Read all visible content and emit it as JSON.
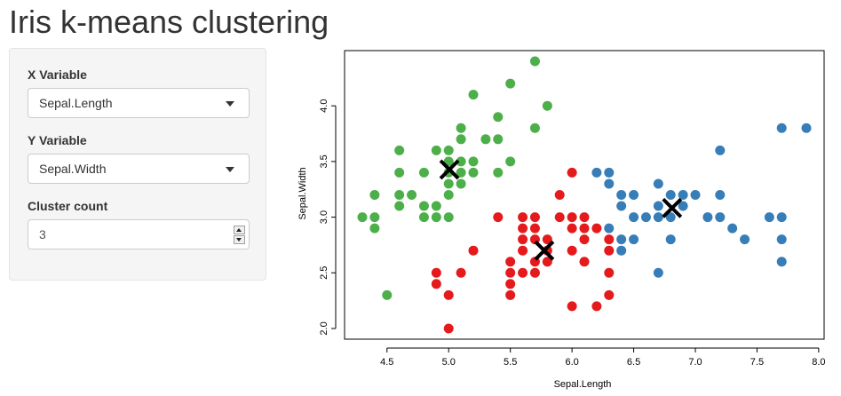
{
  "app": {
    "title": "Iris k-means clustering"
  },
  "sidebar": {
    "x_variable": {
      "label": "X Variable",
      "selected": "Sepal.Length"
    },
    "y_variable": {
      "label": "Y Variable",
      "selected": "Sepal.Width"
    },
    "cluster_count": {
      "label": "Cluster count",
      "value": "3"
    }
  },
  "chart_data": {
    "type": "scatter",
    "xlabel": "Sepal.Length",
    "ylabel": "Sepal.Width",
    "xlim": [
      4.3,
      7.9
    ],
    "ylim": [
      2.0,
      4.4
    ],
    "xticks": [
      "4.5",
      "5.0",
      "5.5",
      "6.0",
      "6.5",
      "7.0",
      "7.5",
      "8.0"
    ],
    "yticks": [
      "2.0",
      "2.5",
      "3.0",
      "3.5",
      "4.0"
    ],
    "grid": false,
    "series": [
      {
        "color": "#4daf4a",
        "points": [
          [
            4.3,
            3.0
          ],
          [
            4.4,
            3.0
          ],
          [
            4.4,
            2.9
          ],
          [
            4.4,
            3.2
          ],
          [
            4.5,
            2.3
          ],
          [
            4.6,
            3.1
          ],
          [
            4.6,
            3.4
          ],
          [
            4.6,
            3.6
          ],
          [
            4.6,
            3.2
          ],
          [
            4.7,
            3.2
          ],
          [
            4.8,
            3.0
          ],
          [
            4.8,
            3.1
          ],
          [
            4.8,
            3.4
          ],
          [
            4.9,
            3.0
          ],
          [
            4.9,
            3.1
          ],
          [
            4.9,
            3.6
          ],
          [
            5.0,
            3.0
          ],
          [
            5.0,
            3.2
          ],
          [
            5.0,
            3.3
          ],
          [
            5.0,
            3.4
          ],
          [
            5.0,
            3.5
          ],
          [
            5.0,
            3.6
          ],
          [
            5.1,
            3.3
          ],
          [
            5.1,
            3.4
          ],
          [
            5.1,
            3.5
          ],
          [
            5.1,
            3.7
          ],
          [
            5.1,
            3.8
          ],
          [
            5.2,
            3.4
          ],
          [
            5.2,
            3.5
          ],
          [
            5.2,
            4.1
          ],
          [
            5.3,
            3.7
          ],
          [
            5.4,
            3.4
          ],
          [
            5.4,
            3.7
          ],
          [
            5.4,
            3.9
          ],
          [
            5.5,
            3.5
          ],
          [
            5.5,
            4.2
          ],
          [
            5.7,
            3.8
          ],
          [
            5.7,
            4.4
          ],
          [
            5.8,
            4.0
          ]
        ]
      },
      {
        "color": "#e41a1c",
        "points": [
          [
            4.9,
            2.4
          ],
          [
            4.9,
            2.5
          ],
          [
            5.0,
            2.0
          ],
          [
            5.0,
            2.3
          ],
          [
            5.1,
            2.5
          ],
          [
            5.2,
            2.7
          ],
          [
            5.4,
            3.0
          ],
          [
            5.5,
            2.3
          ],
          [
            5.5,
            2.4
          ],
          [
            5.5,
            2.5
          ],
          [
            5.5,
            2.6
          ],
          [
            5.6,
            2.5
          ],
          [
            5.6,
            2.7
          ],
          [
            5.6,
            2.8
          ],
          [
            5.6,
            2.9
          ],
          [
            5.6,
            3.0
          ],
          [
            5.7,
            2.5
          ],
          [
            5.7,
            2.6
          ],
          [
            5.7,
            2.8
          ],
          [
            5.7,
            2.9
          ],
          [
            5.7,
            3.0
          ],
          [
            5.8,
            2.6
          ],
          [
            5.8,
            2.7
          ],
          [
            5.8,
            2.8
          ],
          [
            5.9,
            3.0
          ],
          [
            5.9,
            3.2
          ],
          [
            6.0,
            2.2
          ],
          [
            6.0,
            2.7
          ],
          [
            6.0,
            2.9
          ],
          [
            6.0,
            3.0
          ],
          [
            6.0,
            3.4
          ],
          [
            6.1,
            2.6
          ],
          [
            6.1,
            2.8
          ],
          [
            6.1,
            2.9
          ],
          [
            6.1,
            3.0
          ],
          [
            6.2,
            2.2
          ],
          [
            6.2,
            2.9
          ],
          [
            6.3,
            2.3
          ],
          [
            6.3,
            2.5
          ],
          [
            6.3,
            2.7
          ],
          [
            6.3,
            2.8
          ]
        ]
      },
      {
        "color": "#377eb8",
        "points": [
          [
            6.2,
            3.4
          ],
          [
            6.3,
            2.9
          ],
          [
            6.3,
            3.3
          ],
          [
            6.3,
            3.4
          ],
          [
            6.4,
            2.7
          ],
          [
            6.4,
            2.8
          ],
          [
            6.4,
            3.1
          ],
          [
            6.4,
            3.2
          ],
          [
            6.5,
            2.8
          ],
          [
            6.5,
            3.0
          ],
          [
            6.5,
            3.2
          ],
          [
            6.6,
            3.0
          ],
          [
            6.7,
            2.5
          ],
          [
            6.7,
            3.0
          ],
          [
            6.7,
            3.1
          ],
          [
            6.7,
            3.3
          ],
          [
            6.8,
            2.8
          ],
          [
            6.8,
            3.0
          ],
          [
            6.8,
            3.2
          ],
          [
            6.9,
            3.1
          ],
          [
            6.9,
            3.2
          ],
          [
            7.0,
            3.2
          ],
          [
            7.1,
            3.0
          ],
          [
            7.2,
            3.0
          ],
          [
            7.2,
            3.2
          ],
          [
            7.2,
            3.6
          ],
          [
            7.3,
            2.9
          ],
          [
            7.4,
            2.8
          ],
          [
            7.6,
            3.0
          ],
          [
            7.7,
            2.6
          ],
          [
            7.7,
            2.8
          ],
          [
            7.7,
            3.0
          ],
          [
            7.7,
            3.8
          ],
          [
            7.9,
            3.8
          ]
        ]
      }
    ],
    "centers": [
      [
        5.006,
        3.428
      ],
      [
        5.775,
        2.7
      ],
      [
        6.811,
        3.082
      ]
    ]
  }
}
